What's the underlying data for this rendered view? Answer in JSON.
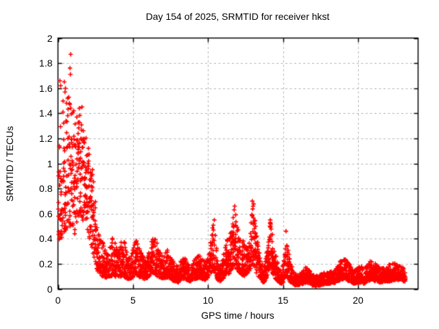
{
  "window": {
    "background_color": "#ffffff"
  },
  "chart_data": {
    "type": "scatter",
    "title": "Day 154 of 2025, SRMTID for receiver hkst",
    "xlabel": "GPS time / hours",
    "ylabel": "SRMTID / TECUs",
    "xlim": [
      0,
      24
    ],
    "ylim": [
      0,
      2
    ],
    "grid": true,
    "legend": "none",
    "xticks": {
      "values": [
        0,
        5,
        10,
        15,
        20
      ],
      "labels": [
        "0",
        "5",
        "10",
        "15",
        "20"
      ],
      "grid_at": [
        5,
        10,
        15,
        20
      ]
    },
    "yticks": {
      "values": [
        0,
        0.2,
        0.4,
        0.6,
        0.8,
        1,
        1.2,
        1.4,
        1.6,
        1.8,
        2
      ],
      "labels": [
        "0",
        "0.2",
        "0.4",
        "0.6",
        "0.8",
        "1",
        "1.2",
        "1.4",
        "1.6",
        "1.8",
        "2"
      ],
      "grid_at": [
        0.2,
        0.4,
        0.6,
        0.8,
        1,
        1.2,
        1.4,
        1.6,
        1.8
      ]
    },
    "series_name": "SRMTID",
    "marker": {
      "shape": "plus",
      "color": "#ff0000",
      "arm": 3.2,
      "line_width": 1.6
    },
    "sampling": {
      "seed": 20250154,
      "points_per_hour": 130,
      "gamma_early": 1.25,
      "gamma_late": 1.55,
      "gamma_split_t": 2.6
    },
    "envelope_note": "piecewise [hour, min_value, max_value] envelope read from the plot; dense 30s samples fill between",
    "envelope": [
      [
        0.02,
        0.45,
        1.05
      ],
      [
        0.1,
        0.38,
        1.2
      ],
      [
        0.2,
        0.4,
        1.35
      ],
      [
        0.3,
        0.42,
        1.5
      ],
      [
        0.4,
        0.4,
        1.62
      ],
      [
        0.5,
        0.45,
        1.58
      ],
      [
        0.6,
        0.48,
        1.5
      ],
      [
        0.7,
        0.5,
        1.52
      ],
      [
        0.8,
        0.48,
        1.68
      ],
      [
        0.9,
        0.5,
        1.48
      ],
      [
        1.0,
        0.45,
        1.42
      ],
      [
        1.1,
        0.42,
        1.3
      ],
      [
        1.2,
        0.5,
        1.38
      ],
      [
        1.3,
        0.55,
        1.42
      ],
      [
        1.4,
        0.58,
        1.45
      ],
      [
        1.5,
        0.6,
        1.38
      ],
      [
        1.6,
        0.55,
        1.45
      ],
      [
        1.7,
        0.52,
        1.32
      ],
      [
        1.8,
        0.55,
        1.28
      ],
      [
        1.9,
        0.5,
        1.2
      ],
      [
        2.0,
        0.46,
        1.16
      ],
      [
        2.1,
        0.4,
        1.1
      ],
      [
        2.2,
        0.36,
        1.05
      ],
      [
        2.3,
        0.3,
        0.95
      ],
      [
        2.4,
        0.26,
        0.85
      ],
      [
        2.5,
        0.2,
        0.72
      ],
      [
        2.6,
        0.15,
        0.55
      ],
      [
        2.7,
        0.13,
        0.46
      ],
      [
        2.8,
        0.11,
        0.42
      ],
      [
        3.0,
        0.1,
        0.38
      ],
      [
        3.2,
        0.09,
        0.3
      ],
      [
        3.4,
        0.1,
        0.36
      ],
      [
        3.6,
        0.1,
        0.42
      ],
      [
        3.8,
        0.1,
        0.38
      ],
      [
        4.0,
        0.09,
        0.28
      ],
      [
        4.2,
        0.1,
        0.4
      ],
      [
        4.4,
        0.1,
        0.42
      ],
      [
        4.6,
        0.08,
        0.3
      ],
      [
        4.8,
        0.08,
        0.24
      ],
      [
        5.0,
        0.09,
        0.32
      ],
      [
        5.2,
        0.11,
        0.42
      ],
      [
        5.4,
        0.1,
        0.35
      ],
      [
        5.6,
        0.08,
        0.28
      ],
      [
        5.8,
        0.08,
        0.24
      ],
      [
        6.0,
        0.09,
        0.28
      ],
      [
        6.2,
        0.12,
        0.4
      ],
      [
        6.4,
        0.12,
        0.44
      ],
      [
        6.6,
        0.1,
        0.38
      ],
      [
        6.8,
        0.09,
        0.3
      ],
      [
        7.0,
        0.08,
        0.26
      ],
      [
        7.2,
        0.09,
        0.32
      ],
      [
        7.4,
        0.09,
        0.3
      ],
      [
        7.6,
        0.07,
        0.24
      ],
      [
        7.8,
        0.06,
        0.2
      ],
      [
        8.0,
        0.05,
        0.18
      ],
      [
        8.2,
        0.07,
        0.24
      ],
      [
        8.4,
        0.08,
        0.26
      ],
      [
        8.6,
        0.07,
        0.22
      ],
      [
        8.8,
        0.06,
        0.18
      ],
      [
        9.0,
        0.07,
        0.2
      ],
      [
        9.2,
        0.08,
        0.26
      ],
      [
        9.4,
        0.09,
        0.28
      ],
      [
        9.6,
        0.08,
        0.24
      ],
      [
        9.8,
        0.07,
        0.22
      ],
      [
        10.0,
        0.09,
        0.28
      ],
      [
        10.2,
        0.12,
        0.4
      ],
      [
        10.35,
        0.16,
        0.56
      ],
      [
        10.5,
        0.12,
        0.45
      ],
      [
        10.65,
        0.07,
        0.22
      ],
      [
        10.8,
        0.06,
        0.18
      ],
      [
        11.0,
        0.08,
        0.25
      ],
      [
        11.2,
        0.12,
        0.38
      ],
      [
        11.4,
        0.12,
        0.42
      ],
      [
        11.6,
        0.15,
        0.5
      ],
      [
        11.75,
        0.2,
        0.68
      ],
      [
        11.9,
        0.16,
        0.58
      ],
      [
        12.0,
        0.14,
        0.52
      ],
      [
        12.2,
        0.12,
        0.45
      ],
      [
        12.4,
        0.1,
        0.38
      ],
      [
        12.6,
        0.12,
        0.35
      ],
      [
        12.8,
        0.15,
        0.45
      ],
      [
        13.0,
        0.2,
        0.72
      ],
      [
        13.15,
        0.15,
        0.6
      ],
      [
        13.3,
        0.1,
        0.4
      ],
      [
        13.5,
        0.07,
        0.25
      ],
      [
        13.7,
        0.05,
        0.16
      ],
      [
        13.9,
        0.08,
        0.28
      ],
      [
        14.05,
        0.15,
        0.5
      ],
      [
        14.15,
        0.18,
        0.57
      ],
      [
        14.3,
        0.12,
        0.45
      ],
      [
        14.5,
        0.08,
        0.3
      ],
      [
        14.7,
        0.05,
        0.18
      ],
      [
        14.9,
        0.04,
        0.12
      ],
      [
        15.05,
        0.06,
        0.25
      ],
      [
        15.2,
        0.1,
        0.47
      ],
      [
        15.35,
        0.08,
        0.32
      ],
      [
        15.5,
        0.05,
        0.22
      ],
      [
        15.7,
        0.03,
        0.14
      ],
      [
        16.0,
        0.03,
        0.12
      ],
      [
        16.3,
        0.04,
        0.14
      ],
      [
        16.6,
        0.05,
        0.2
      ],
      [
        16.9,
        0.03,
        0.12
      ],
      [
        17.2,
        0.02,
        0.1
      ],
      [
        17.5,
        0.03,
        0.12
      ],
      [
        17.8,
        0.04,
        0.14
      ],
      [
        18.1,
        0.04,
        0.14
      ],
      [
        18.5,
        0.05,
        0.16
      ],
      [
        18.8,
        0.07,
        0.22
      ],
      [
        19.1,
        0.08,
        0.26
      ],
      [
        19.4,
        0.06,
        0.2
      ],
      [
        19.7,
        0.04,
        0.14
      ],
      [
        20.0,
        0.05,
        0.18
      ],
      [
        20.2,
        0.05,
        0.2
      ],
      [
        20.4,
        0.04,
        0.15
      ],
      [
        20.6,
        0.06,
        0.2
      ],
      [
        20.9,
        0.07,
        0.23
      ],
      [
        21.2,
        0.06,
        0.2
      ],
      [
        21.5,
        0.05,
        0.16
      ],
      [
        21.8,
        0.06,
        0.18
      ],
      [
        22.1,
        0.06,
        0.2
      ],
      [
        22.4,
        0.07,
        0.21
      ],
      [
        22.7,
        0.07,
        0.19
      ],
      [
        23.0,
        0.06,
        0.17
      ],
      [
        23.15,
        0.06,
        0.14
      ]
    ],
    "outliers": [
      [
        0.85,
        1.87
      ],
      [
        0.8,
        1.76
      ],
      [
        0.83,
        1.71
      ],
      [
        0.13,
        1.66
      ],
      [
        0.18,
        1.62
      ],
      [
        0.42,
        1.65
      ],
      [
        0.5,
        1.6
      ],
      [
        0.47,
        1.57
      ],
      [
        0.65,
        1.52
      ],
      [
        1.42,
        1.44
      ],
      [
        1.6,
        1.45
      ],
      [
        1.05,
        1.42
      ],
      [
        2.3,
        0.95
      ],
      [
        10.42,
        0.55
      ],
      [
        11.78,
        0.66
      ],
      [
        12.95,
        0.7
      ],
      [
        13.0,
        0.66
      ],
      [
        14.15,
        0.55
      ],
      [
        15.2,
        0.46
      ]
    ]
  },
  "colors": {
    "background": "#ffffff",
    "border": "#000000",
    "grid": "#b0b0b0",
    "marker": "#ff0000",
    "text": "#000000"
  }
}
